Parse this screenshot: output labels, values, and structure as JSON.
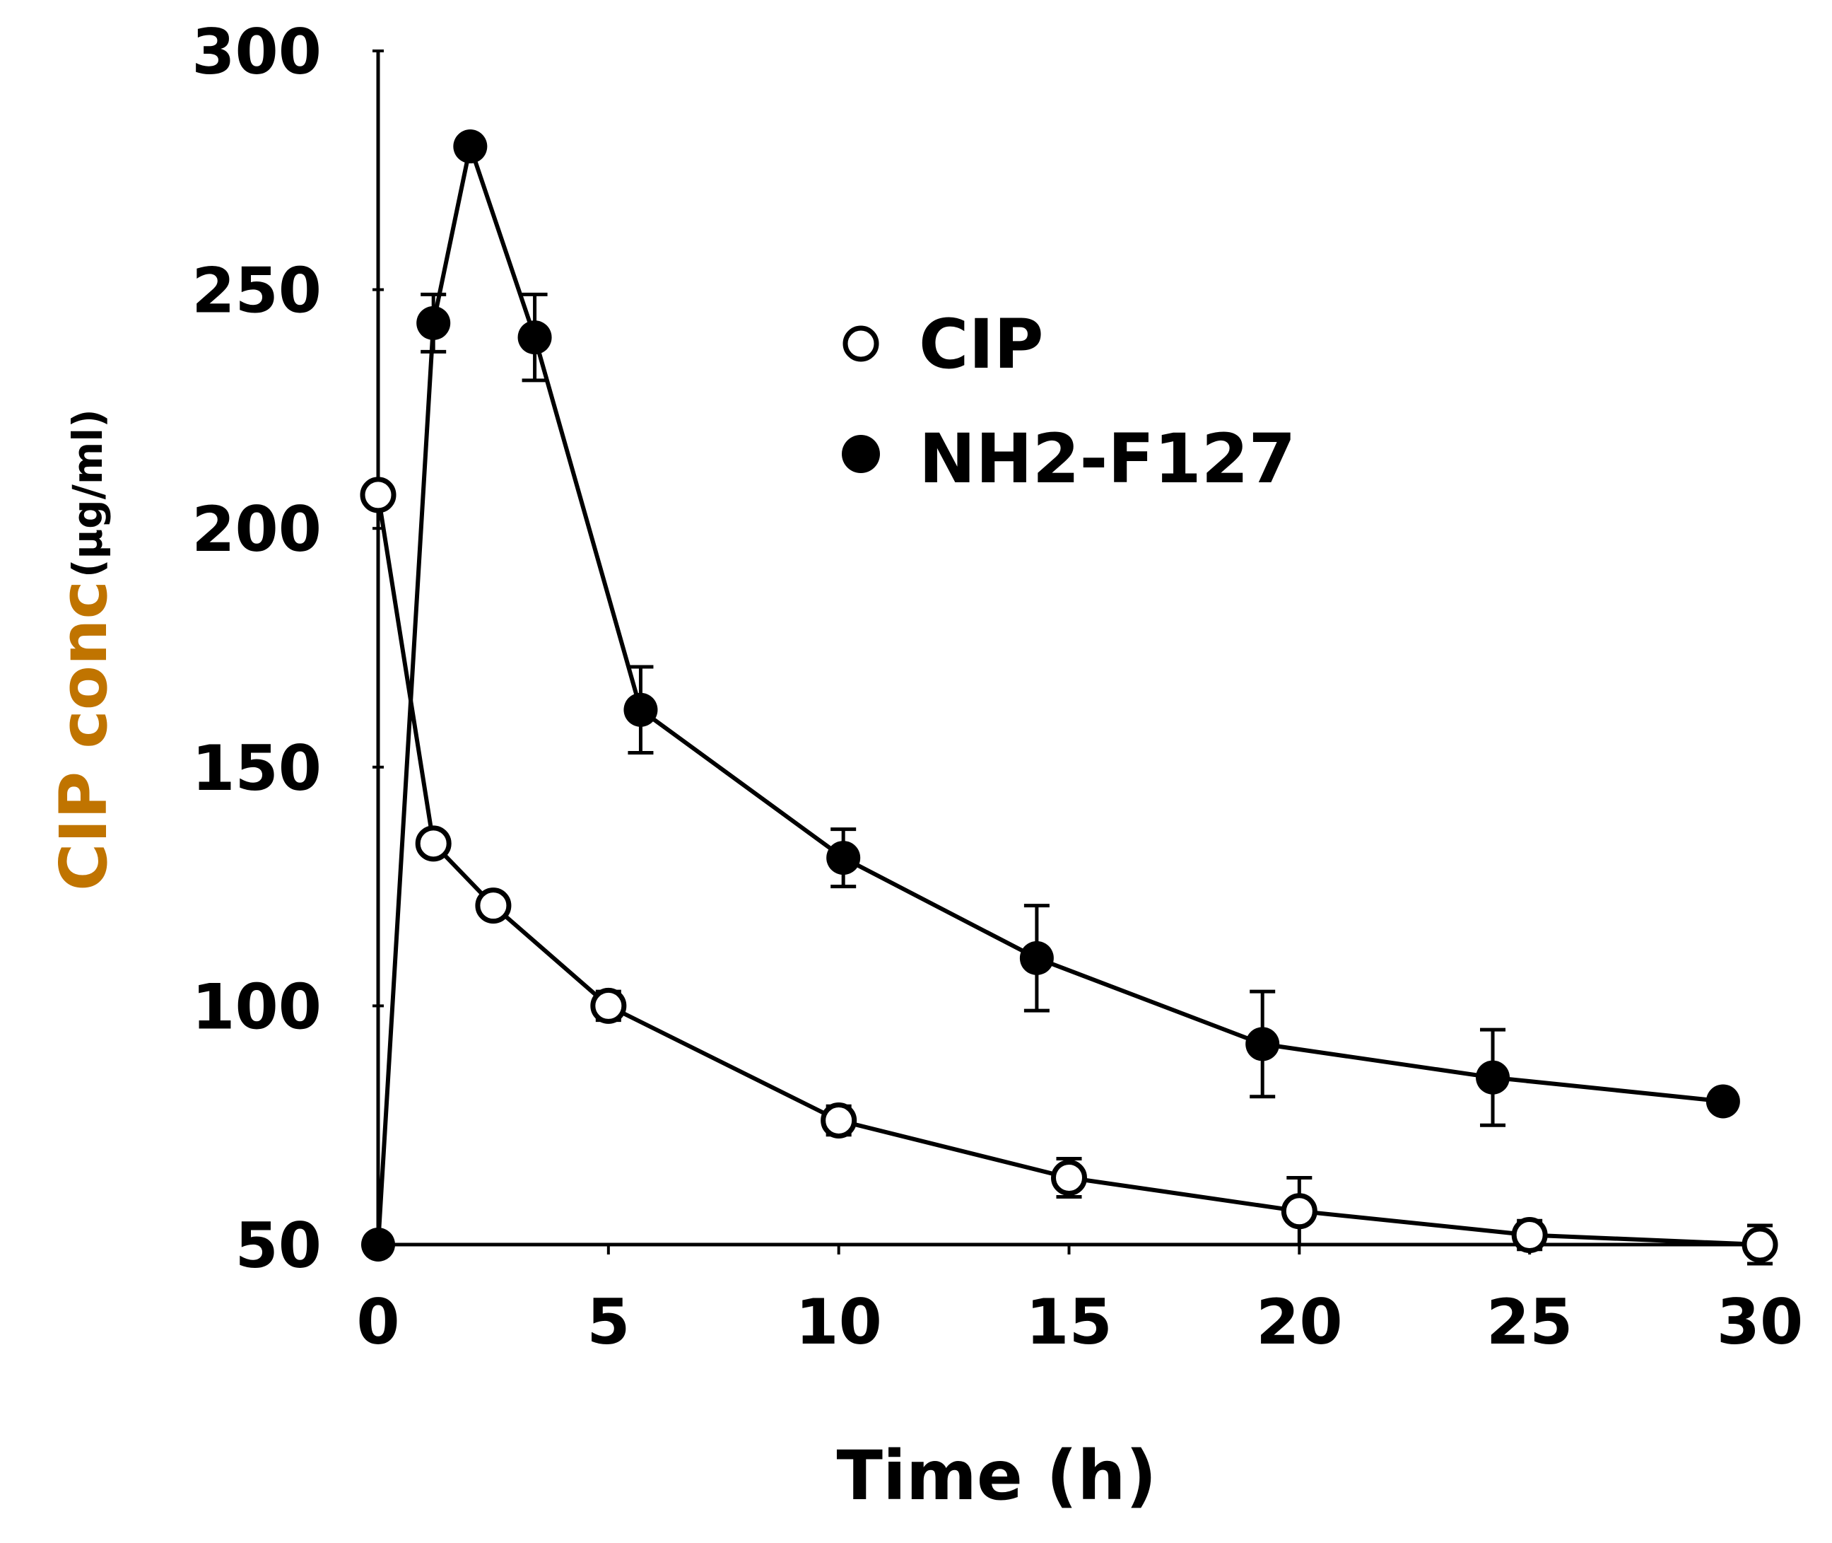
{
  "chart_data": {
    "type": "line",
    "title": "",
    "xlabel": "Time (h)",
    "ylabel": "CIP conc",
    "ylabel_unit": "(µg/ml)",
    "xlim": [
      0,
      30
    ],
    "ylim": [
      50,
      300
    ],
    "xticks": [
      0,
      5,
      10,
      15,
      20,
      25,
      30
    ],
    "yticks": [
      50,
      100,
      150,
      200,
      250,
      300
    ],
    "grid": false,
    "legend_position": "top-right",
    "colors": {
      "ylabel": "#c07400",
      "line": "#000000"
    },
    "series": [
      {
        "name": "CIP",
        "marker": "open-circle",
        "points": [
          {
            "x": 0,
            "y": 207,
            "err": 0
          },
          {
            "x": 1.2,
            "y": 134,
            "err": 0
          },
          {
            "x": 2.5,
            "y": 121,
            "err": 0
          },
          {
            "x": 5,
            "y": 100,
            "err": 3
          },
          {
            "x": 10,
            "y": 76,
            "err": 3
          },
          {
            "x": 15,
            "y": 64,
            "err": 4
          },
          {
            "x": 20,
            "y": 57,
            "err": 7
          },
          {
            "x": 25,
            "y": 52,
            "err": 3
          },
          {
            "x": 30,
            "y": 50,
            "err": 4
          }
        ]
      },
      {
        "name": "NH2-F127",
        "marker": "filled-circle",
        "points": [
          {
            "x": 0,
            "y": 50,
            "err": 0
          },
          {
            "x": 1.2,
            "y": 243,
            "err": 6
          },
          {
            "x": 2.0,
            "y": 280,
            "err": 0
          },
          {
            "x": 3.4,
            "y": 240,
            "err": 9
          },
          {
            "x": 5.7,
            "y": 162,
            "err": 9
          },
          {
            "x": 10.1,
            "y": 131,
            "err": 6
          },
          {
            "x": 14.3,
            "y": 110,
            "err": 11
          },
          {
            "x": 19.2,
            "y": 92,
            "err": 11
          },
          {
            "x": 24.2,
            "y": 85,
            "err": 10
          },
          {
            "x": 29.2,
            "y": 80,
            "err": 0
          }
        ]
      }
    ]
  }
}
